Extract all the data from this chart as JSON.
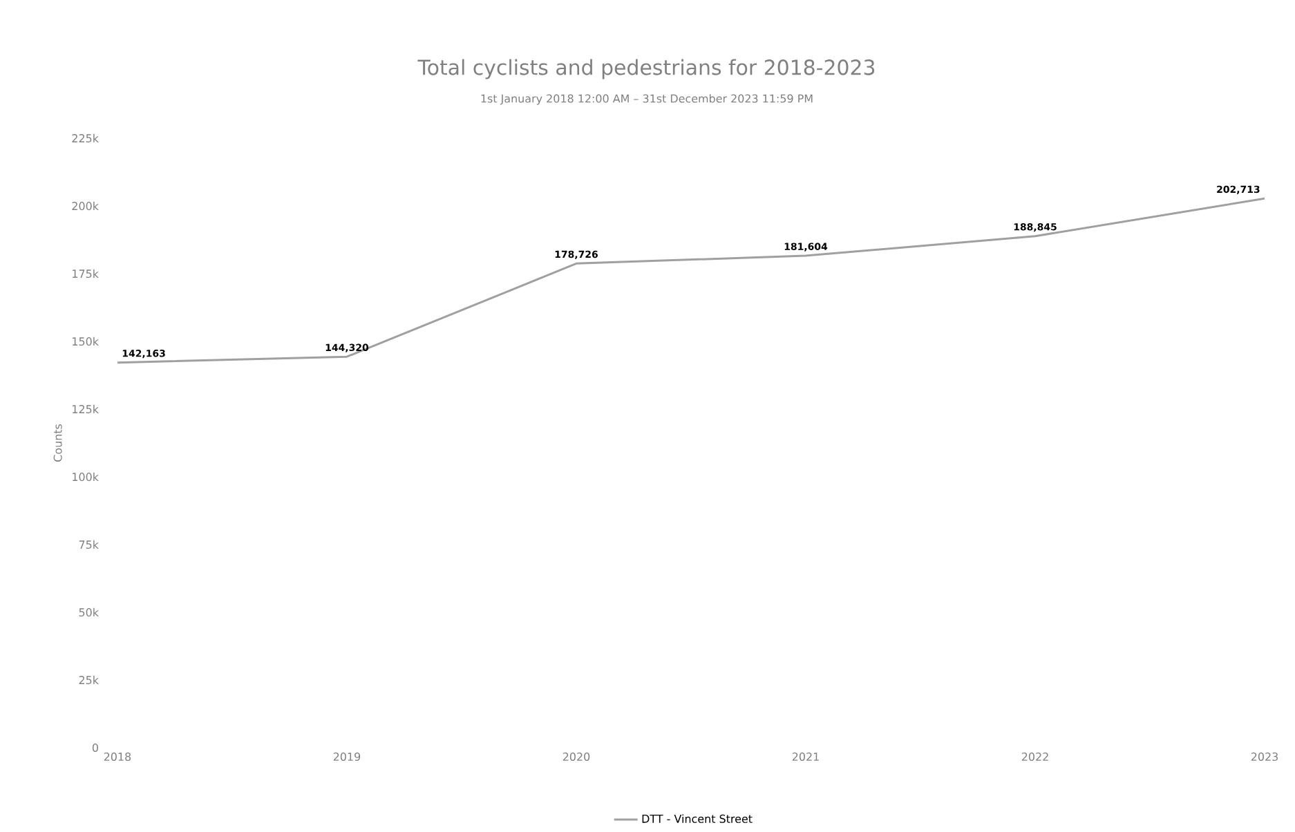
{
  "chart_data": {
    "type": "line",
    "title": "Total cyclists and pedestrians for 2018-2023",
    "subtitle": "1st January 2018 12:00 AM – 31st December 2023 11:59 PM",
    "ylabel": "Counts",
    "categories": [
      "2018",
      "2019",
      "2020",
      "2021",
      "2022",
      "2023"
    ],
    "series": [
      {
        "name": "DTT - Vincent Street",
        "color": "#a0a0a0",
        "values": [
          142163,
          144320,
          178726,
          181604,
          188845,
          202713
        ],
        "value_labels": [
          "142,163",
          "144,320",
          "178,726",
          "181,604",
          "188,845",
          "202,713"
        ]
      }
    ],
    "ylim": [
      0,
      225000
    ],
    "yticks": [
      {
        "value": 0,
        "label": "0"
      },
      {
        "value": 25000,
        "label": "25k"
      },
      {
        "value": 50000,
        "label": "50k"
      },
      {
        "value": 75000,
        "label": "75k"
      },
      {
        "value": 100000,
        "label": "100k"
      },
      {
        "value": 125000,
        "label": "125k"
      },
      {
        "value": 150000,
        "label": "150k"
      },
      {
        "value": 175000,
        "label": "175k"
      },
      {
        "value": 200000,
        "label": "200k"
      },
      {
        "value": 225000,
        "label": "225k"
      }
    ],
    "grid": false,
    "legend": "bottom",
    "marker": "none",
    "line_style": "solid"
  }
}
